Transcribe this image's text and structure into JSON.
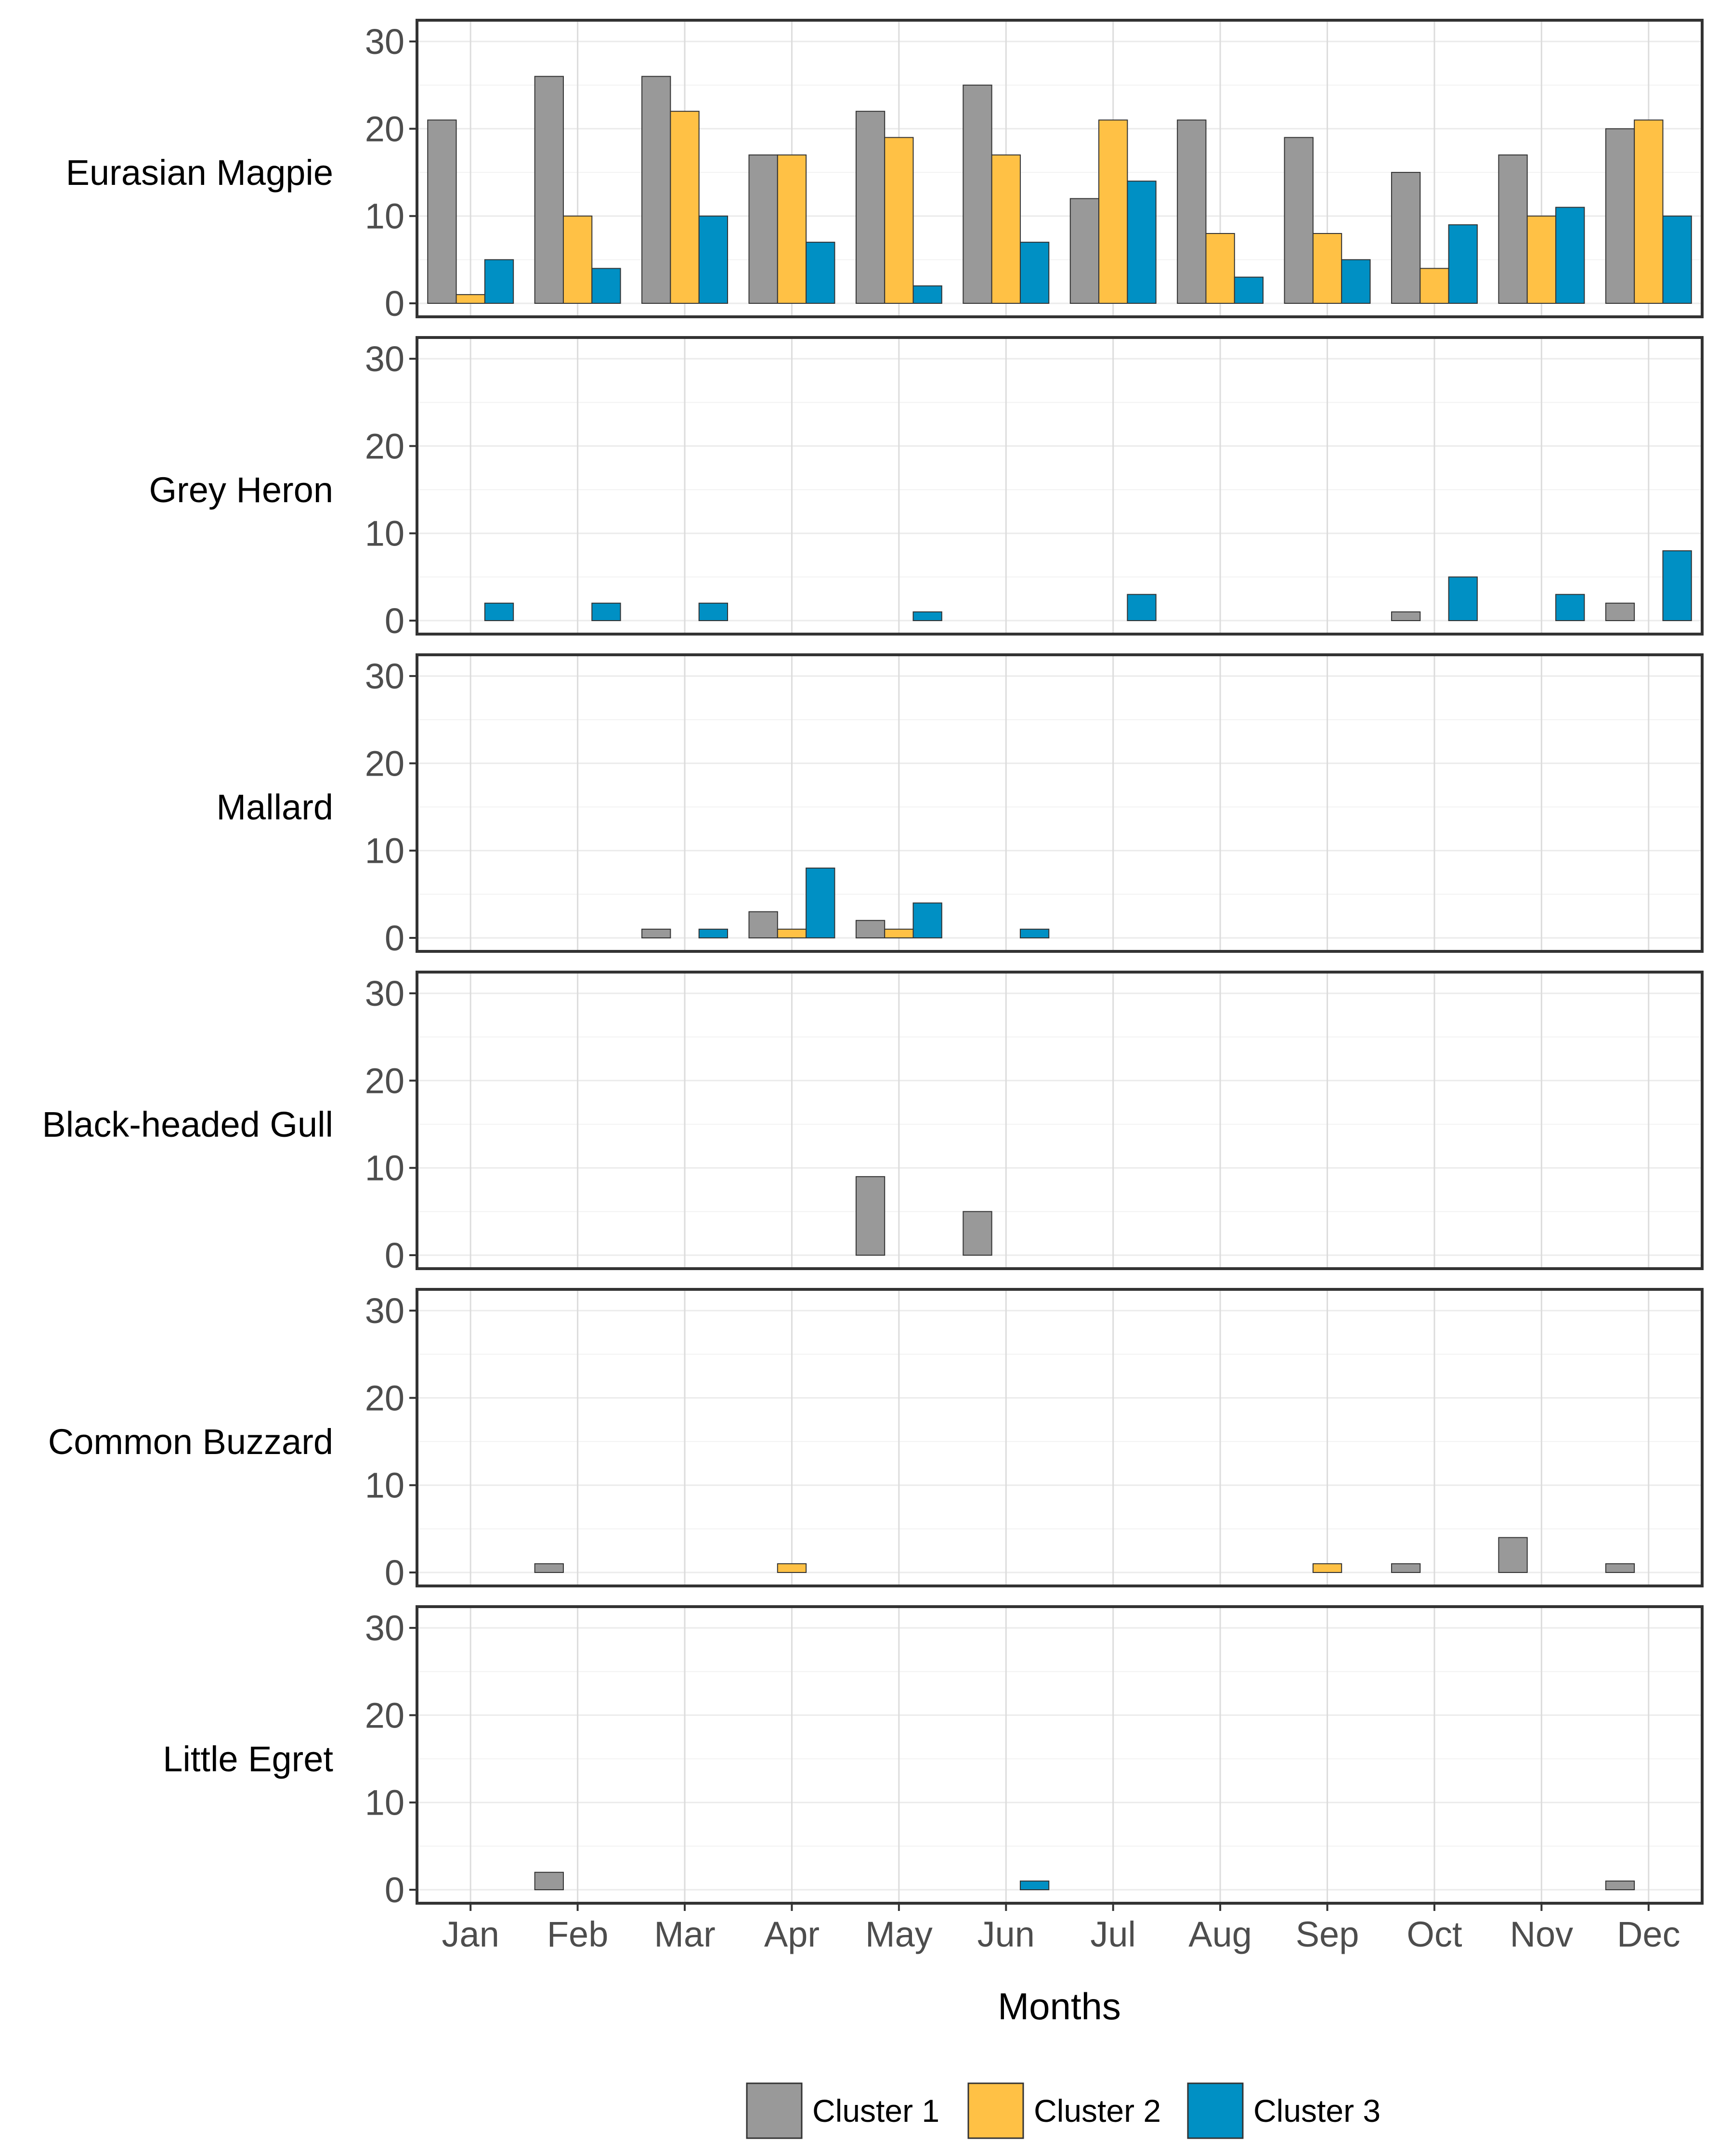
{
  "chart_data": {
    "type": "bar",
    "xlabel": "Months",
    "months": [
      "Jan",
      "Feb",
      "Mar",
      "Apr",
      "May",
      "Jun",
      "Jul",
      "Aug",
      "Sep",
      "Oct",
      "Nov",
      "Dec"
    ],
    "ylim": [
      0,
      31
    ],
    "yticks": [
      "0",
      "10",
      "20",
      "30"
    ],
    "grid": true,
    "legend_position": "bottom",
    "colors": {
      "Cluster 1": "#999999",
      "Cluster 2": "#FFC145",
      "Cluster 3": "#0090C4"
    },
    "series_names": [
      "Cluster 1",
      "Cluster 2",
      "Cluster 3"
    ],
    "facets": [
      {
        "label": "Eurasian Magpie",
        "series": [
          {
            "name": "Cluster 1",
            "values": [
              21,
              26,
              26,
              17,
              22,
              25,
              12,
              21,
              19,
              15,
              17,
              20
            ]
          },
          {
            "name": "Cluster 2",
            "values": [
              1,
              10,
              22,
              17,
              19,
              17,
              21,
              8,
              8,
              4,
              10,
              21
            ]
          },
          {
            "name": "Cluster 3",
            "values": [
              5,
              4,
              10,
              7,
              2,
              7,
              14,
              3,
              5,
              9,
              11,
              10
            ]
          }
        ]
      },
      {
        "label": "Grey Heron",
        "series": [
          {
            "name": "Cluster 1",
            "values": [
              0,
              0,
              0,
              0,
              0,
              0,
              0,
              0,
              0,
              1,
              0,
              2
            ]
          },
          {
            "name": "Cluster 2",
            "values": [
              0,
              0,
              0,
              0,
              0,
              0,
              0,
              0,
              0,
              0,
              0,
              0
            ]
          },
          {
            "name": "Cluster 3",
            "values": [
              2,
              2,
              2,
              0,
              1,
              0,
              3,
              0,
              0,
              5,
              3,
              8
            ]
          }
        ]
      },
      {
        "label": "Mallard",
        "series": [
          {
            "name": "Cluster 1",
            "values": [
              0,
              0,
              1,
              3,
              2,
              0,
              0,
              0,
              0,
              0,
              0,
              0
            ]
          },
          {
            "name": "Cluster 2",
            "values": [
              0,
              0,
              0,
              1,
              1,
              0,
              0,
              0,
              0,
              0,
              0,
              0
            ]
          },
          {
            "name": "Cluster 3",
            "values": [
              0,
              0,
              1,
              8,
              4,
              1,
              0,
              0,
              0,
              0,
              0,
              0
            ]
          }
        ]
      },
      {
        "label": "Black-headed Gull",
        "series": [
          {
            "name": "Cluster 1",
            "values": [
              0,
              0,
              0,
              0,
              9,
              5,
              0,
              0,
              0,
              0,
              0,
              0
            ]
          },
          {
            "name": "Cluster 2",
            "values": [
              0,
              0,
              0,
              0,
              0,
              0,
              0,
              0,
              0,
              0,
              0,
              0
            ]
          },
          {
            "name": "Cluster 3",
            "values": [
              0,
              0,
              0,
              0,
              0,
              0,
              0,
              0,
              0,
              0,
              0,
              0
            ]
          }
        ]
      },
      {
        "label": "Common Buzzard",
        "series": [
          {
            "name": "Cluster 1",
            "values": [
              0,
              1,
              0,
              0,
              0,
              0,
              0,
              0,
              0,
              1,
              4,
              1
            ]
          },
          {
            "name": "Cluster 2",
            "values": [
              0,
              0,
              0,
              1,
              0,
              0,
              0,
              0,
              1,
              0,
              0,
              0
            ]
          },
          {
            "name": "Cluster 3",
            "values": [
              0,
              0,
              0,
              0,
              0,
              0,
              0,
              0,
              0,
              0,
              0,
              0
            ]
          }
        ]
      },
      {
        "label": "Little Egret",
        "series": [
          {
            "name": "Cluster 1",
            "values": [
              0,
              2,
              0,
              0,
              0,
              0,
              0,
              0,
              0,
              0,
              0,
              1
            ]
          },
          {
            "name": "Cluster 2",
            "values": [
              0,
              0,
              0,
              0,
              0,
              0,
              0,
              0,
              0,
              0,
              0,
              0
            ]
          },
          {
            "name": "Cluster 3",
            "values": [
              0,
              0,
              0,
              0,
              0,
              1,
              0,
              0,
              0,
              0,
              0,
              0
            ]
          }
        ]
      }
    ]
  }
}
